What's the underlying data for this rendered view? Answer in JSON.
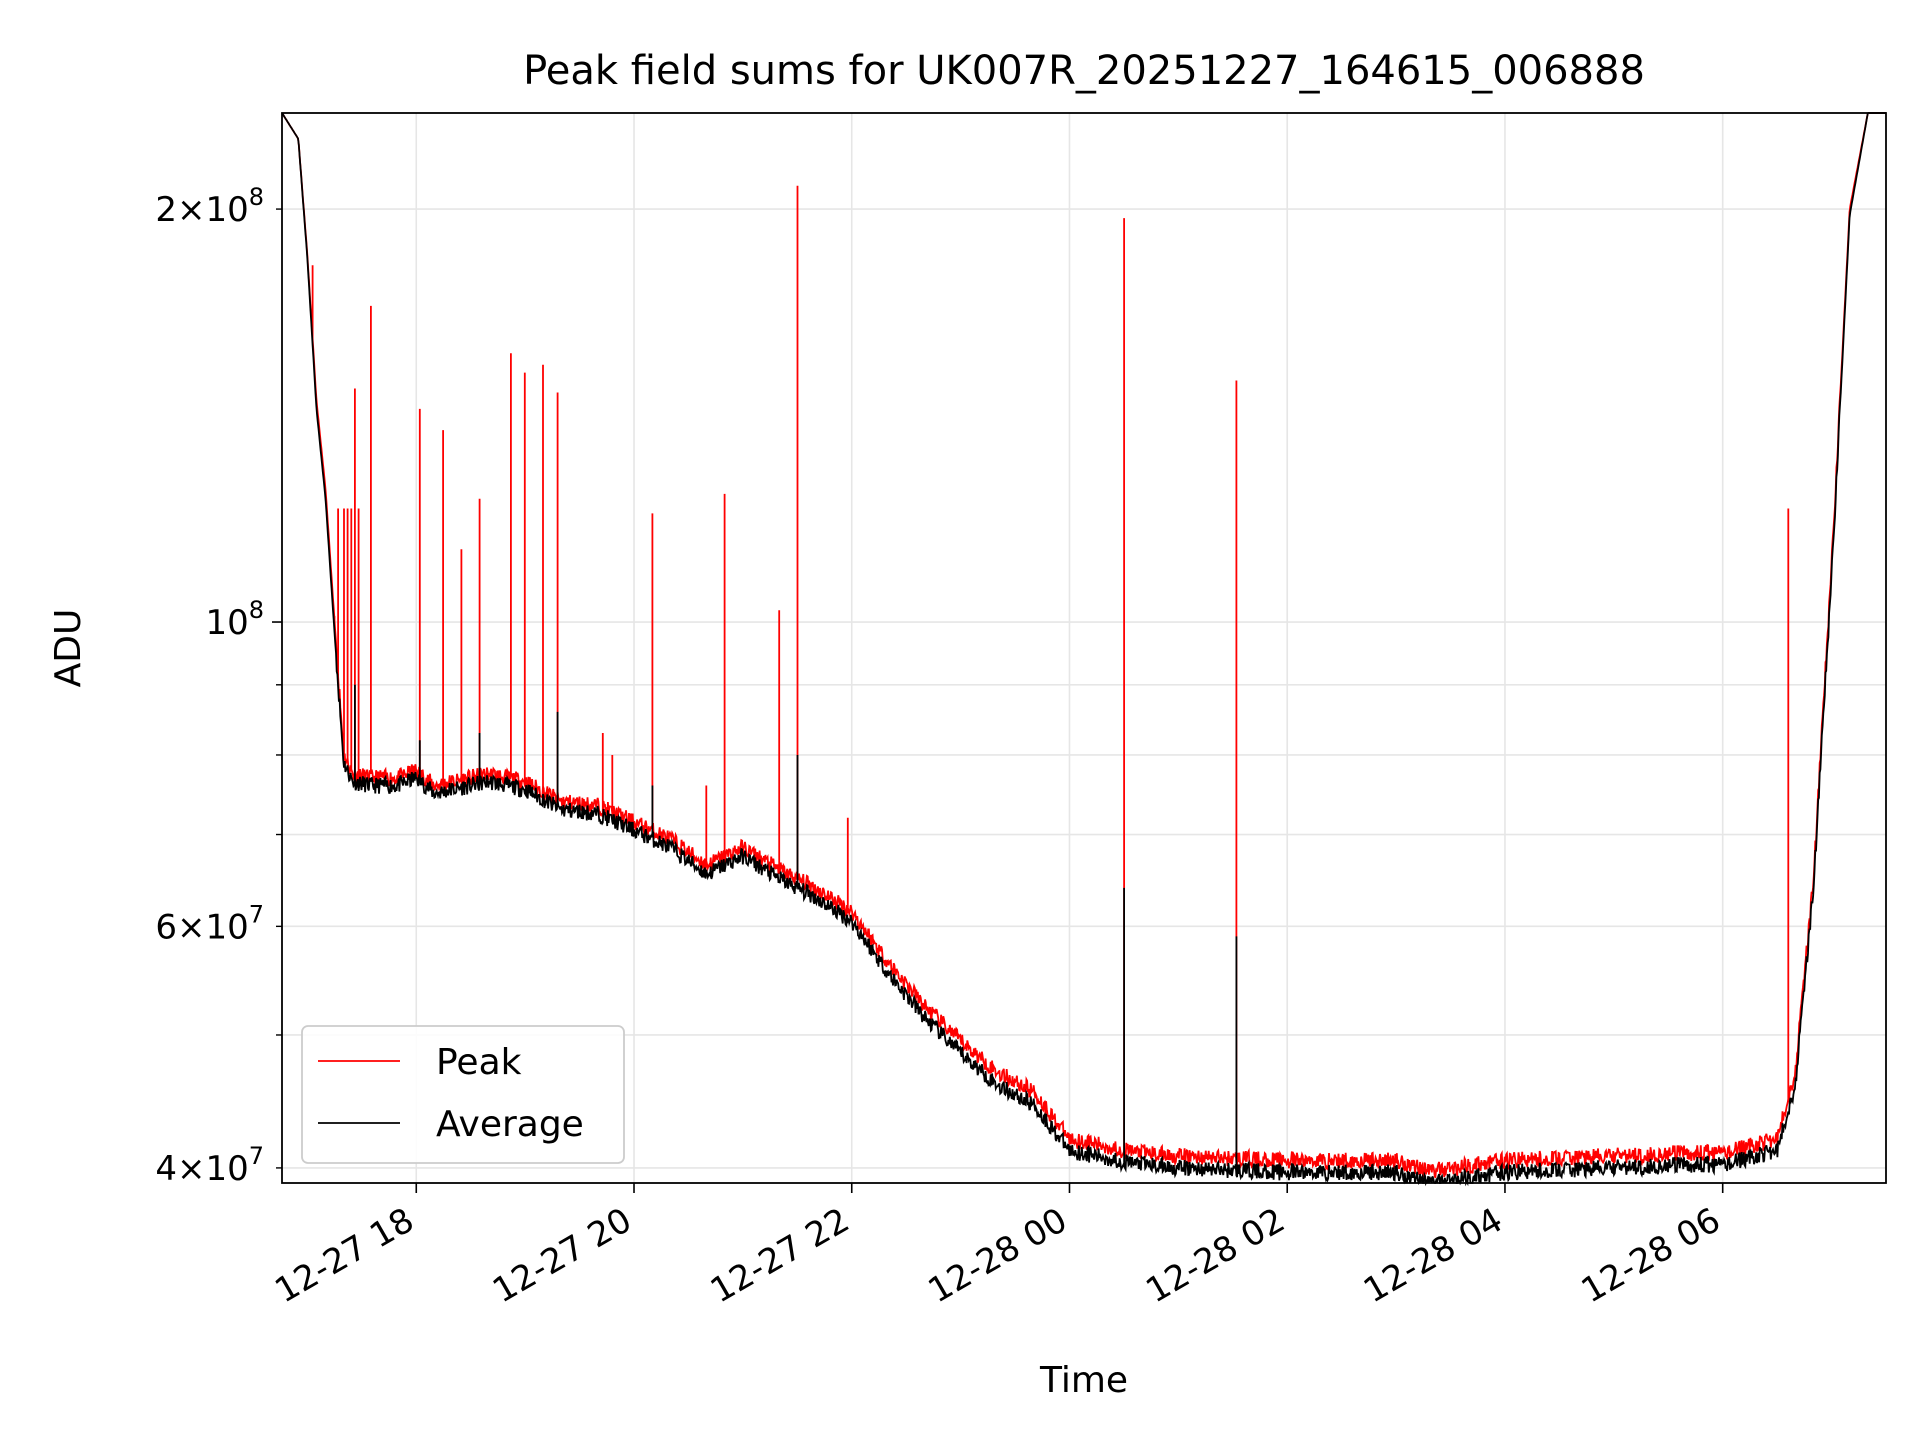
{
  "chart_data": {
    "type": "line",
    "title": "Peak field sums for UK007R_20251227_164615_006888",
    "xlabel": "Time",
    "ylabel": "ADU",
    "yscale": "log",
    "xlim": [
      "2025-12-27 16:46",
      "2025-12-28 07:30"
    ],
    "ylim": [
      39000000,
      235000000
    ],
    "x_ticks": [
      "12-27 18",
      "12-27 20",
      "12-27 22",
      "12-28 00",
      "12-28 02",
      "12-28 04",
      "12-28 06"
    ],
    "y_ticks_major": [
      {
        "value": 100000000,
        "base": "10",
        "exp": "8"
      }
    ],
    "y_ticks_minor": [
      {
        "value": 40000000,
        "mant": "4",
        "base": "10",
        "exp": "7"
      },
      {
        "value": 60000000,
        "mant": "6",
        "base": "10",
        "exp": "7"
      },
      {
        "value": 200000000,
        "mant": "2",
        "base": "10",
        "exp": "8"
      }
    ],
    "y_ticks_minor_unlabeled": [
      50000000,
      70000000,
      80000000,
      90000000
    ],
    "grid": true,
    "legend": {
      "placement": "lower-left",
      "entries": [
        "Peak",
        "Average"
      ]
    },
    "series": [
      {
        "name": "Peak",
        "color": "#ff0000",
        "x": [
          "2025-12-27 16:46",
          "2025-12-27 16:55",
          "2025-12-27 17:00",
          "2025-12-27 17:05",
          "2025-12-27 17:10",
          "2025-12-27 17:15",
          "2025-12-27 17:20",
          "2025-12-27 17:25",
          "2025-12-27 17:35",
          "2025-12-27 17:50",
          "2025-12-27 18:00",
          "2025-12-27 18:10",
          "2025-12-27 18:20",
          "2025-12-27 18:40",
          "2025-12-27 19:00",
          "2025-12-27 19:20",
          "2025-12-27 19:40",
          "2025-12-27 20:00",
          "2025-12-27 20:20",
          "2025-12-27 20:40",
          "2025-12-27 20:50",
          "2025-12-27 21:00",
          "2025-12-27 21:20",
          "2025-12-27 21:40",
          "2025-12-27 22:00",
          "2025-12-27 22:20",
          "2025-12-27 22:40",
          "2025-12-27 23:00",
          "2025-12-27 23:20",
          "2025-12-27 23:40",
          "2025-12-28 00:00",
          "2025-12-28 00:30",
          "2025-12-28 01:00",
          "2025-12-28 02:00",
          "2025-12-28 03:00",
          "2025-12-28 03:20",
          "2025-12-28 04:00",
          "2025-12-28 05:00",
          "2025-12-28 05:40",
          "2025-12-28 06:00",
          "2025-12-28 06:30",
          "2025-12-28 06:40",
          "2025-12-28 06:50",
          "2025-12-28 07:00",
          "2025-12-28 07:10",
          "2025-12-28 07:20",
          "2025-12-28 07:30"
        ],
        "y": [
          235000000,
          225000000,
          185000000,
          145000000,
          125000000,
          100000000,
          80000000,
          77500000,
          77000000,
          77000000,
          78000000,
          76000000,
          76500000,
          77500000,
          76500000,
          74000000,
          73500000,
          71500000,
          69500000,
          66500000,
          67500000,
          68500000,
          66000000,
          64000000,
          61500000,
          56500000,
          52500000,
          49500000,
          47000000,
          45500000,
          42000000,
          41200000,
          40800000,
          40500000,
          40500000,
          39800000,
          40500000,
          40800000,
          41000000,
          41000000,
          42000000,
          47000000,
          65000000,
          110000000,
          200000000,
          235000000,
          235000000
        ],
        "spikes": [
          {
            "x": "2025-12-27 17:03",
            "y": 182000000
          },
          {
            "x": "2025-12-27 17:15",
            "y": 101000000
          },
          {
            "x": "2025-12-27 17:17",
            "y": 121000000
          },
          {
            "x": "2025-12-27 17:20",
            "y": 121000000
          },
          {
            "x": "2025-12-27 17:22",
            "y": 121000000
          },
          {
            "x": "2025-12-27 17:24",
            "y": 121000000
          },
          {
            "x": "2025-12-27 17:26",
            "y": 148000000
          },
          {
            "x": "2025-12-27 17:28",
            "y": 121000000
          },
          {
            "x": "2025-12-27 17:35",
            "y": 170000000
          },
          {
            "x": "2025-12-27 18:02",
            "y": 143000000
          },
          {
            "x": "2025-12-27 18:15",
            "y": 138000000
          },
          {
            "x": "2025-12-27 18:25",
            "y": 113000000
          },
          {
            "x": "2025-12-27 18:35",
            "y": 123000000
          },
          {
            "x": "2025-12-27 18:52",
            "y": 157000000
          },
          {
            "x": "2025-12-27 19:00",
            "y": 152000000
          },
          {
            "x": "2025-12-27 19:10",
            "y": 154000000
          },
          {
            "x": "2025-12-27 19:18",
            "y": 147000000
          },
          {
            "x": "2025-12-27 19:43",
            "y": 83000000
          },
          {
            "x": "2025-12-27 19:48",
            "y": 80000000
          },
          {
            "x": "2025-12-27 20:10",
            "y": 120000000
          },
          {
            "x": "2025-12-27 20:40",
            "y": 76000000
          },
          {
            "x": "2025-12-27 20:50",
            "y": 124000000
          },
          {
            "x": "2025-12-27 21:20",
            "y": 102000000
          },
          {
            "x": "2025-12-27 21:30",
            "y": 208000000
          },
          {
            "x": "2025-12-27 21:58",
            "y": 72000000
          },
          {
            "x": "2025-12-28 00:30",
            "y": 197000000
          },
          {
            "x": "2025-12-28 01:32",
            "y": 150000000
          },
          {
            "x": "2025-12-28 06:36",
            "y": 121000000
          }
        ]
      },
      {
        "name": "Average",
        "color": "#000000",
        "x": [
          "2025-12-27 16:46",
          "2025-12-27 16:55",
          "2025-12-27 17:00",
          "2025-12-27 17:05",
          "2025-12-27 17:10",
          "2025-12-27 17:15",
          "2025-12-27 17:20",
          "2025-12-27 17:25",
          "2025-12-27 17:35",
          "2025-12-27 17:50",
          "2025-12-27 18:00",
          "2025-12-27 18:10",
          "2025-12-27 18:20",
          "2025-12-27 18:40",
          "2025-12-27 19:00",
          "2025-12-27 19:20",
          "2025-12-27 19:40",
          "2025-12-27 20:00",
          "2025-12-27 20:20",
          "2025-12-27 20:40",
          "2025-12-27 20:50",
          "2025-12-27 21:00",
          "2025-12-27 21:20",
          "2025-12-27 21:40",
          "2025-12-27 22:00",
          "2025-12-27 22:20",
          "2025-12-27 22:40",
          "2025-12-27 23:00",
          "2025-12-27 23:20",
          "2025-12-27 23:40",
          "2025-12-28 00:00",
          "2025-12-28 00:30",
          "2025-12-28 01:00",
          "2025-12-28 02:00",
          "2025-12-28 03:00",
          "2025-12-28 03:20",
          "2025-12-28 04:00",
          "2025-12-28 05:00",
          "2025-12-28 05:40",
          "2025-12-28 06:00",
          "2025-12-28 06:30",
          "2025-12-28 06:40",
          "2025-12-28 06:50",
          "2025-12-28 07:00",
          "2025-12-28 07:10",
          "2025-12-28 07:20",
          "2025-12-28 07:30"
        ],
        "y": [
          235000000,
          225000000,
          184000000,
          143000000,
          123000000,
          98000000,
          79000000,
          76500000,
          76000000,
          76000000,
          77000000,
          75000000,
          75500000,
          76500000,
          75500000,
          73000000,
          72500000,
          70500000,
          68500000,
          65500000,
          66500000,
          67500000,
          65000000,
          63000000,
          60500000,
          55500000,
          51500000,
          48500000,
          46000000,
          44500000,
          41200000,
          40400000,
          40000000,
          39700000,
          39700000,
          39000000,
          39700000,
          40000000,
          40200000,
          40200000,
          41200000,
          46000000,
          64000000,
          108000000,
          198000000,
          235000000,
          235000000
        ],
        "spikes": [
          {
            "x": "2025-12-27 17:26",
            "y": 90000000
          },
          {
            "x": "2025-12-27 18:02",
            "y": 82000000
          },
          {
            "x": "2025-12-27 18:35",
            "y": 83000000
          },
          {
            "x": "2025-12-27 19:18",
            "y": 86000000
          },
          {
            "x": "2025-12-27 20:10",
            "y": 76000000
          },
          {
            "x": "2025-12-27 21:30",
            "y": 80000000
          },
          {
            "x": "2025-12-28 00:30",
            "y": 64000000
          },
          {
            "x": "2025-12-28 01:32",
            "y": 59000000
          }
        ]
      }
    ]
  }
}
